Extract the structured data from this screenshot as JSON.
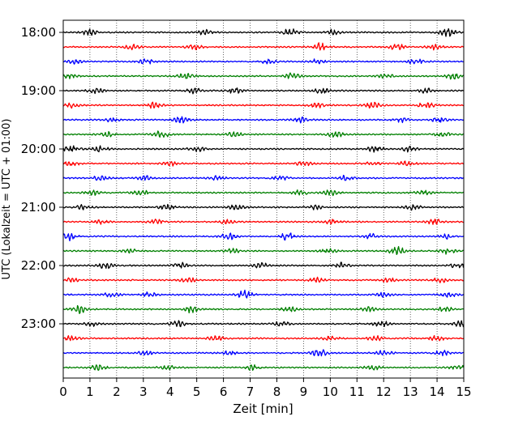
{
  "chart_data": {
    "type": "line",
    "title": "",
    "xlabel": "Zeit  [min]",
    "ylabel": "UTC (Lokalzeit = UTC + 01:00)",
    "xlim": [
      0,
      15
    ],
    "x_ticks": [
      "0",
      "1",
      "2",
      "3",
      "4",
      "5",
      "6",
      "7",
      "8",
      "9",
      "10",
      "11",
      "12",
      "13",
      "14",
      "15"
    ],
    "y_tick_labels": [
      "18:00",
      "19:00",
      "20:00",
      "21:00",
      "22:00",
      "23:00"
    ],
    "y_ticks_every_n_traces": 4,
    "trace_count": 24,
    "trace_interval_minutes": 15,
    "color_cycle": [
      "#000000",
      "#ff0000",
      "#0000ff",
      "#008000"
    ],
    "vertical_grid": true,
    "grid_style": "dotted",
    "traces": [
      {
        "start": "18:00",
        "color": "#000000",
        "bursts": [
          {
            "x": 1.0,
            "amp": 0.7
          },
          {
            "x": 5.3,
            "amp": 0.6
          },
          {
            "x": 8.5,
            "amp": 0.8
          },
          {
            "x": 10.1,
            "amp": 0.6
          },
          {
            "x": 14.4,
            "amp": 1.0
          }
        ]
      },
      {
        "start": "18:15",
        "color": "#ff0000",
        "bursts": [
          {
            "x": 2.6,
            "amp": 0.6
          },
          {
            "x": 4.9,
            "amp": 0.7
          },
          {
            "x": 9.6,
            "amp": 0.9
          },
          {
            "x": 12.5,
            "amp": 0.7
          },
          {
            "x": 13.9,
            "amp": 0.6
          }
        ]
      },
      {
        "start": "18:30",
        "color": "#0000ff",
        "bursts": [
          {
            "x": 0.4,
            "amp": 0.5
          },
          {
            "x": 3.1,
            "amp": 0.6
          },
          {
            "x": 7.7,
            "amp": 0.5
          },
          {
            "x": 9.5,
            "amp": 0.6
          },
          {
            "x": 13.2,
            "amp": 0.6
          }
        ]
      },
      {
        "start": "18:45",
        "color": "#008000",
        "bursts": [
          {
            "x": 0.2,
            "amp": 0.6
          },
          {
            "x": 4.6,
            "amp": 0.7
          },
          {
            "x": 8.6,
            "amp": 0.7
          },
          {
            "x": 12.1,
            "amp": 0.6
          },
          {
            "x": 14.6,
            "amp": 0.7
          }
        ]
      },
      {
        "start": "19:00",
        "color": "#000000",
        "bursts": [
          {
            "x": 1.2,
            "amp": 0.7
          },
          {
            "x": 4.9,
            "amp": 0.6
          },
          {
            "x": 6.4,
            "amp": 0.8
          },
          {
            "x": 9.7,
            "amp": 0.6
          },
          {
            "x": 13.6,
            "amp": 0.6
          }
        ]
      },
      {
        "start": "19:15",
        "color": "#ff0000",
        "bursts": [
          {
            "x": 0.3,
            "amp": 0.6
          },
          {
            "x": 3.4,
            "amp": 0.7
          },
          {
            "x": 9.5,
            "amp": 0.7
          },
          {
            "x": 11.6,
            "amp": 0.8
          },
          {
            "x": 13.6,
            "amp": 1.0
          }
        ]
      },
      {
        "start": "19:30",
        "color": "#0000ff",
        "bursts": [
          {
            "x": 1.8,
            "amp": 0.5
          },
          {
            "x": 4.4,
            "amp": 0.7
          },
          {
            "x": 8.9,
            "amp": 0.6
          },
          {
            "x": 12.7,
            "amp": 0.6
          },
          {
            "x": 14.1,
            "amp": 0.7
          }
        ]
      },
      {
        "start": "19:45",
        "color": "#008000",
        "bursts": [
          {
            "x": 1.7,
            "amp": 0.6
          },
          {
            "x": 3.7,
            "amp": 0.9
          },
          {
            "x": 6.4,
            "amp": 0.6
          },
          {
            "x": 10.2,
            "amp": 0.6
          },
          {
            "x": 14.2,
            "amp": 0.6
          }
        ]
      },
      {
        "start": "20:00",
        "color": "#000000",
        "bursts": [
          {
            "x": 0.3,
            "amp": 0.7
          },
          {
            "x": 1.4,
            "amp": 0.7
          },
          {
            "x": 5.0,
            "amp": 0.6
          },
          {
            "x": 11.7,
            "amp": 0.8
          },
          {
            "x": 13.0,
            "amp": 0.7
          }
        ]
      },
      {
        "start": "20:15",
        "color": "#ff0000",
        "bursts": [
          {
            "x": 0.3,
            "amp": 0.6
          },
          {
            "x": 4.0,
            "amp": 0.5
          },
          {
            "x": 9.0,
            "amp": 0.6
          },
          {
            "x": 11.6,
            "amp": 0.5
          },
          {
            "x": 12.9,
            "amp": 0.7
          }
        ]
      },
      {
        "start": "20:30",
        "color": "#0000ff",
        "bursts": [
          {
            "x": 1.4,
            "amp": 0.6
          },
          {
            "x": 3.1,
            "amp": 0.6
          },
          {
            "x": 5.8,
            "amp": 0.6
          },
          {
            "x": 8.1,
            "amp": 0.6
          },
          {
            "x": 10.6,
            "amp": 0.6
          }
        ]
      },
      {
        "start": "20:45",
        "color": "#008000",
        "bursts": [
          {
            "x": 1.1,
            "amp": 0.6
          },
          {
            "x": 2.9,
            "amp": 0.6
          },
          {
            "x": 8.9,
            "amp": 0.6
          },
          {
            "x": 10.0,
            "amp": 0.7
          },
          {
            "x": 13.5,
            "amp": 0.6
          }
        ]
      },
      {
        "start": "21:00",
        "color": "#000000",
        "bursts": [
          {
            "x": 0.8,
            "amp": 0.6
          },
          {
            "x": 3.9,
            "amp": 0.6
          },
          {
            "x": 6.5,
            "amp": 0.6
          },
          {
            "x": 9.4,
            "amp": 0.6
          },
          {
            "x": 13.1,
            "amp": 0.6
          }
        ]
      },
      {
        "start": "21:15",
        "color": "#ff0000",
        "bursts": [
          {
            "x": 1.4,
            "amp": 0.5
          },
          {
            "x": 3.5,
            "amp": 0.5
          },
          {
            "x": 6.1,
            "amp": 0.6
          },
          {
            "x": 10.1,
            "amp": 0.6
          },
          {
            "x": 13.9,
            "amp": 0.6
          }
        ]
      },
      {
        "start": "21:30",
        "color": "#0000ff",
        "bursts": [
          {
            "x": 0.2,
            "amp": 0.9
          },
          {
            "x": 6.2,
            "amp": 0.9
          },
          {
            "x": 8.4,
            "amp": 1.0
          },
          {
            "x": 11.5,
            "amp": 0.6
          },
          {
            "x": 14.3,
            "amp": 0.6
          }
        ]
      },
      {
        "start": "21:45",
        "color": "#008000",
        "bursts": [
          {
            "x": 2.5,
            "amp": 0.5
          },
          {
            "x": 6.3,
            "amp": 0.6
          },
          {
            "x": 9.9,
            "amp": 0.6
          },
          {
            "x": 12.5,
            "amp": 1.0
          },
          {
            "x": 14.4,
            "amp": 0.7
          }
        ]
      },
      {
        "start": "22:00",
        "color": "#000000",
        "bursts": [
          {
            "x": 1.6,
            "amp": 0.8
          },
          {
            "x": 4.4,
            "amp": 0.7
          },
          {
            "x": 7.4,
            "amp": 0.6
          },
          {
            "x": 10.4,
            "amp": 0.7
          },
          {
            "x": 14.8,
            "amp": 0.7
          }
        ]
      },
      {
        "start": "22:15",
        "color": "#ff0000",
        "bursts": [
          {
            "x": 0.3,
            "amp": 0.5
          },
          {
            "x": 4.7,
            "amp": 0.6
          },
          {
            "x": 9.5,
            "amp": 0.6
          },
          {
            "x": 12.2,
            "amp": 0.5
          },
          {
            "x": 14.1,
            "amp": 0.6
          }
        ]
      },
      {
        "start": "22:30",
        "color": "#0000ff",
        "bursts": [
          {
            "x": 1.8,
            "amp": 0.5
          },
          {
            "x": 3.2,
            "amp": 0.6
          },
          {
            "x": 6.8,
            "amp": 1.0
          },
          {
            "x": 12.0,
            "amp": 0.6
          },
          {
            "x": 14.4,
            "amp": 0.6
          }
        ]
      },
      {
        "start": "22:45",
        "color": "#008000",
        "bursts": [
          {
            "x": 0.6,
            "amp": 0.9
          },
          {
            "x": 4.8,
            "amp": 0.8
          },
          {
            "x": 8.5,
            "amp": 0.6
          },
          {
            "x": 11.4,
            "amp": 0.6
          },
          {
            "x": 14.3,
            "amp": 0.6
          }
        ]
      },
      {
        "start": "23:00",
        "color": "#000000",
        "bursts": [
          {
            "x": 1.1,
            "amp": 0.6
          },
          {
            "x": 4.3,
            "amp": 0.7
          },
          {
            "x": 8.2,
            "amp": 0.6
          },
          {
            "x": 11.9,
            "amp": 0.7
          },
          {
            "x": 14.9,
            "amp": 0.7
          }
        ]
      },
      {
        "start": "23:15",
        "color": "#ff0000",
        "bursts": [
          {
            "x": 0.3,
            "amp": 0.6
          },
          {
            "x": 5.7,
            "amp": 0.6
          },
          {
            "x": 10.0,
            "amp": 0.6
          },
          {
            "x": 11.7,
            "amp": 0.6
          },
          {
            "x": 14.0,
            "amp": 0.6
          }
        ]
      },
      {
        "start": "23:30",
        "color": "#0000ff",
        "bursts": [
          {
            "x": 3.1,
            "amp": 0.5
          },
          {
            "x": 6.2,
            "amp": 0.5
          },
          {
            "x": 9.6,
            "amp": 1.0
          },
          {
            "x": 12.0,
            "amp": 0.6
          },
          {
            "x": 14.2,
            "amp": 0.6
          }
        ]
      },
      {
        "start": "23:45",
        "color": "#008000",
        "bursts": [
          {
            "x": 1.3,
            "amp": 0.7
          },
          {
            "x": 3.9,
            "amp": 0.6
          },
          {
            "x": 7.1,
            "amp": 0.6
          },
          {
            "x": 11.6,
            "amp": 0.6
          },
          {
            "x": 14.8,
            "amp": 0.6
          }
        ]
      }
    ]
  }
}
